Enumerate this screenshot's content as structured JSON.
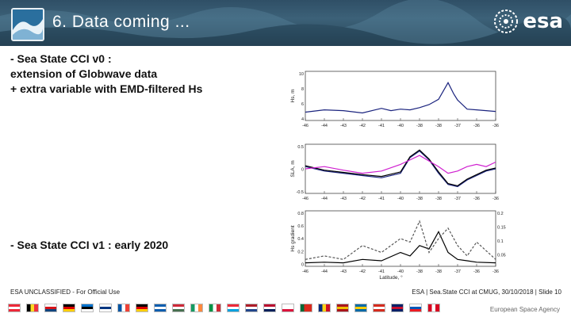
{
  "header": {
    "title": "6. Data coming ...",
    "logo_text": "esa"
  },
  "content": {
    "block_v0": [
      "- Sea State CCI v0 :",
      "extension of Globwave data",
      "+ extra variable with EMD-filtered Hs"
    ],
    "block_v1": "- Sea State CCI v1 : early 2020"
  },
  "chart_data": [
    {
      "type": "line",
      "ylabel": "Hs, m",
      "x_ticks": [
        "-46",
        "-44",
        "-43",
        "-42",
        "-41",
        "-40",
        "-38",
        "-38",
        "-37",
        "-36",
        "-36"
      ],
      "y_ticks": [
        "10",
        "8",
        "6",
        "4"
      ],
      "ylim": [
        3.5,
        10
      ],
      "series": [
        {
          "color": "#1a237e",
          "x": [
            -46,
            -45,
            -44,
            -43,
            -42,
            -41.5,
            -41,
            -40.5,
            -40,
            -39.5,
            -39,
            -38.5,
            -38.2,
            -38,
            -37.5,
            -37,
            -36.5,
            -36
          ],
          "values": [
            4.6,
            4.9,
            4.8,
            4.5,
            5.1,
            4.8,
            5.0,
            4.9,
            5.2,
            5.6,
            6.3,
            8.5,
            7.0,
            6.2,
            5.0,
            4.9,
            4.8,
            4.7
          ]
        }
      ]
    },
    {
      "type": "line",
      "ylabel": "SLA, m",
      "x_ticks": [
        "-46",
        "-44",
        "-43",
        "-42",
        "-41",
        "-40",
        "-38",
        "-38",
        "-37",
        "-36",
        "-36"
      ],
      "y_ticks": [
        "0.5",
        "0",
        "-0.5"
      ],
      "ylim": [
        -0.5,
        0.6
      ],
      "series": [
        {
          "color": "#1a237e",
          "x": [
            -46,
            -45,
            -44,
            -43,
            -42,
            -41,
            -40.5,
            -40,
            -39.5,
            -39,
            -38.5,
            -38,
            -37.5,
            -37,
            -36.5,
            -36
          ],
          "values": [
            0.1,
            0.0,
            -0.05,
            -0.1,
            -0.15,
            -0.05,
            0.3,
            0.45,
            0.25,
            -0.05,
            -0.3,
            -0.35,
            -0.2,
            -0.1,
            0.0,
            0.05
          ]
        },
        {
          "color": "#000000",
          "x": [
            -46,
            -45,
            -44,
            -43,
            -42,
            -41,
            -40.5,
            -40,
            -39.5,
            -39,
            -38.5,
            -38,
            -37.5,
            -37,
            -36.5,
            -36
          ],
          "values": [
            0.12,
            0.02,
            -0.03,
            -0.08,
            -0.12,
            -0.02,
            0.32,
            0.47,
            0.27,
            -0.02,
            -0.28,
            -0.33,
            -0.18,
            -0.08,
            0.02,
            0.07
          ]
        },
        {
          "color": "#d020d0",
          "x": [
            -46,
            -45,
            -44,
            -43,
            -42,
            -41,
            -40,
            -39,
            -38.5,
            -38,
            -37.5,
            -37,
            -36.5,
            -36
          ],
          "values": [
            0.05,
            0.1,
            0.02,
            -0.05,
            0.0,
            0.15,
            0.35,
            0.1,
            -0.05,
            0.0,
            0.1,
            0.15,
            0.1,
            0.2
          ]
        }
      ]
    },
    {
      "type": "line",
      "xlabel": "Latitude, °",
      "ylabel": "Hs gradient",
      "y2label": "ADT gradient",
      "x_ticks": [
        "-46",
        "-44",
        "-43",
        "-42",
        "-41",
        "-40",
        "-38",
        "-38",
        "-37",
        "-36",
        "-36"
      ],
      "y_ticks": [
        "0.8",
        "0.6",
        "0.4",
        "0.2",
        "0"
      ],
      "y2_ticks": [
        "0.2",
        "0.15",
        "0.1",
        "0.05"
      ],
      "ylim": [
        0,
        0.8
      ],
      "series": [
        {
          "color": "#000000",
          "x": [
            -46,
            -45,
            -44,
            -43,
            -42,
            -41,
            -40.5,
            -40,
            -39.5,
            -39,
            -38.5,
            -38,
            -37.5,
            -37,
            -36
          ],
          "values": [
            0.05,
            0.06,
            0.05,
            0.1,
            0.08,
            0.2,
            0.15,
            0.3,
            0.25,
            0.5,
            0.2,
            0.1,
            0.08,
            0.06,
            0.05
          ]
        },
        {
          "color": "#555555",
          "x": [
            -46,
            -45,
            -44,
            -43,
            -42,
            -41,
            -40.5,
            -40,
            -39.5,
            -39,
            -38.5,
            -38,
            -37.5,
            -37,
            -36
          ],
          "values": [
            0.1,
            0.15,
            0.1,
            0.3,
            0.2,
            0.4,
            0.35,
            0.65,
            0.2,
            0.4,
            0.55,
            0.3,
            0.15,
            0.35,
            0.1
          ]
        }
      ]
    }
  ],
  "footer": {
    "classification": "ESA UNCLASSIFIED - For Official Use",
    "slide_info": "ESA | Sea.State CCI at CMUG, 30/10/2018 | Slide  10",
    "agency": "European Space Agency",
    "flags": [
      {
        "name": "austria",
        "c1": "#ed2939",
        "c2": "#ffffff",
        "c3": "#ed2939",
        "dir": "h"
      },
      {
        "name": "belgium",
        "c1": "#000000",
        "c2": "#fdda24",
        "c3": "#ef3340",
        "dir": "v"
      },
      {
        "name": "czech",
        "c1": "#ffffff",
        "c2": "#d7141a",
        "c3": "#11457e",
        "dir": "h"
      },
      {
        "name": "germany",
        "c1": "#000000",
        "c2": "#dd0000",
        "c3": "#ffce00",
        "dir": "h"
      },
      {
        "name": "estonia",
        "c1": "#0072ce",
        "c2": "#000000",
        "c3": "#ffffff",
        "dir": "h"
      },
      {
        "name": "finland",
        "c1": "#ffffff",
        "c2": "#003580",
        "c3": "#ffffff",
        "dir": "h"
      },
      {
        "name": "france",
        "c1": "#0055a4",
        "c2": "#ffffff",
        "c3": "#ef4135",
        "dir": "v"
      },
      {
        "name": "germany-2",
        "c1": "#000000",
        "c2": "#dd0000",
        "c3": "#ffce00",
        "dir": "h"
      },
      {
        "name": "greece",
        "c1": "#0d5eaf",
        "c2": "#ffffff",
        "c3": "#0d5eaf",
        "dir": "h"
      },
      {
        "name": "hungary",
        "c1": "#ce2939",
        "c2": "#ffffff",
        "c3": "#477050",
        "dir": "h"
      },
      {
        "name": "ireland",
        "c1": "#169b62",
        "c2": "#ffffff",
        "c3": "#ff883e",
        "dir": "v"
      },
      {
        "name": "italy",
        "c1": "#009246",
        "c2": "#ffffff",
        "c3": "#ce2b37",
        "dir": "v"
      },
      {
        "name": "luxembourg",
        "c1": "#ed2939",
        "c2": "#ffffff",
        "c3": "#00a1de",
        "dir": "h"
      },
      {
        "name": "netherlands",
        "c1": "#ae1c28",
        "c2": "#ffffff",
        "c3": "#21468b",
        "dir": "h"
      },
      {
        "name": "norway",
        "c1": "#ba0c2f",
        "c2": "#ffffff",
        "c3": "#00205b",
        "dir": "h"
      },
      {
        "name": "poland",
        "c1": "#ffffff",
        "c2": "#ffffff",
        "c3": "#dc143c",
        "dir": "h"
      },
      {
        "name": "portugal",
        "c1": "#046a38",
        "c2": "#da291c",
        "c3": "#da291c",
        "dir": "v"
      },
      {
        "name": "romania",
        "c1": "#002b7f",
        "c2": "#fcd116",
        "c3": "#ce1126",
        "dir": "v"
      },
      {
        "name": "spain",
        "c1": "#aa151b",
        "c2": "#f1bf00",
        "c3": "#aa151b",
        "dir": "h"
      },
      {
        "name": "sweden",
        "c1": "#006aa7",
        "c2": "#fecc00",
        "c3": "#006aa7",
        "dir": "h"
      },
      {
        "name": "switzerland",
        "c1": "#d52b1e",
        "c2": "#ffffff",
        "c3": "#d52b1e",
        "dir": "h"
      },
      {
        "name": "uk",
        "c1": "#012169",
        "c2": "#c8102e",
        "c3": "#012169",
        "dir": "h"
      },
      {
        "name": "slovenia",
        "c1": "#ffffff",
        "c2": "#0057b8",
        "c3": "#ed1c24",
        "dir": "h"
      },
      {
        "name": "canada",
        "c1": "#d80621",
        "c2": "#ffffff",
        "c3": "#d80621",
        "dir": "v"
      }
    ]
  }
}
